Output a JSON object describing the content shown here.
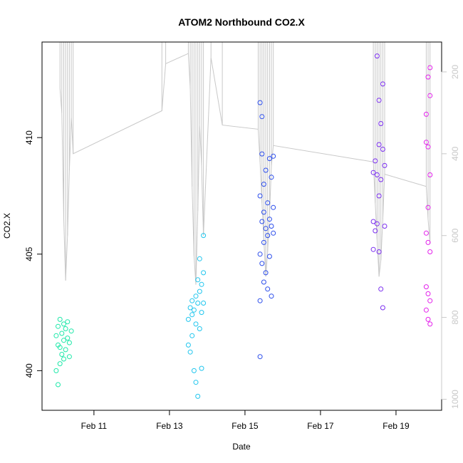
{
  "chart_data": {
    "type": "scatter",
    "title": "ATOM2 Northbound CO2.X",
    "xlabel": "Date",
    "ylabel": "CO2.X",
    "x_unit": "days",
    "xlim": [
      "2014-02-09T15:00",
      "2014-02-20T05:00"
    ],
    "ylim": [
      398.3,
      414.1
    ],
    "x_ticks": [
      {
        "date": "2014-02-11",
        "label": "Feb 11"
      },
      {
        "date": "2014-02-13",
        "label": "Feb 13"
      },
      {
        "date": "2014-02-15",
        "label": "Feb 15"
      },
      {
        "date": "2014-02-17",
        "label": "Feb 17"
      },
      {
        "date": "2014-02-19",
        "label": "Feb 19"
      }
    ],
    "y_ticks": [
      400,
      405,
      410
    ],
    "y2_ticks": [
      200,
      400,
      600,
      800,
      1000
    ],
    "y2_range": [
      127,
      1027
    ],
    "y2_reversed": true,
    "grid": false,
    "secondary_series": {
      "color": "#c8c8c8",
      "points": [
        [
          "2014-02-10T02:24",
          240
        ],
        [
          "2014-02-10T03:36",
          300
        ],
        [
          "2014-02-10T04:48",
          560
        ],
        [
          "2014-02-10T06:00",
          710
        ],
        [
          "2014-02-10T07:12",
          600
        ],
        [
          "2014-02-10T08:24",
          440
        ],
        [
          "2014-02-10T09:36",
          310
        ],
        [
          "2014-02-10T10:48",
          400
        ],
        [
          "2014-02-12T19:12",
          295
        ],
        [
          "2014-02-12T21:36",
          180
        ],
        [
          "2014-02-13T12:00",
          155
        ],
        [
          "2014-02-13T13:12",
          240
        ],
        [
          "2014-02-13T14:24",
          480
        ],
        [
          "2014-02-13T15:36",
          650
        ],
        [
          "2014-02-13T16:48",
          720
        ],
        [
          "2014-02-13T18:00",
          540
        ],
        [
          "2014-02-13T19:12",
          330
        ],
        [
          "2014-02-13T20:24",
          430
        ],
        [
          "2014-02-13T21:36",
          600
        ],
        [
          "2014-02-14T02:24",
          165
        ],
        [
          "2014-02-14T09:36",
          330
        ],
        [
          "2014-02-15T08:24",
          340
        ],
        [
          "2014-02-15T09:36",
          420
        ],
        [
          "2014-02-15T10:48",
          520
        ],
        [
          "2014-02-15T12:00",
          610
        ],
        [
          "2014-02-15T13:12",
          700
        ],
        [
          "2014-02-15T14:24",
          640
        ],
        [
          "2014-02-15T15:36",
          550
        ],
        [
          "2014-02-15T16:48",
          430
        ],
        [
          "2014-02-15T18:00",
          380
        ],
        [
          "2014-02-18T09:36",
          420
        ],
        [
          "2014-02-18T10:48",
          520
        ],
        [
          "2014-02-18T12:00",
          610
        ],
        [
          "2014-02-18T13:12",
          700
        ],
        [
          "2014-02-18T14:24",
          660
        ],
        [
          "2014-02-18T15:36",
          560
        ],
        [
          "2014-02-18T16:48",
          450
        ],
        [
          "2014-02-19T19:12",
          480
        ],
        [
          "2014-02-19T20:24",
          560
        ],
        [
          "2014-02-19T21:36",
          620
        ]
      ]
    },
    "series": [
      {
        "color": "#1EE8A9",
        "points": [
          [
            "2014-02-10T00:00",
            401.5
          ],
          [
            "2014-02-10T00:00",
            400.0
          ],
          [
            "2014-02-10T01:12",
            401.9
          ],
          [
            "2014-02-10T01:12",
            401.1
          ],
          [
            "2014-02-10T01:12",
            399.4
          ],
          [
            "2014-02-10T02:24",
            402.2
          ],
          [
            "2014-02-10T02:24",
            401.0
          ],
          [
            "2014-02-10T02:24",
            400.3
          ],
          [
            "2014-02-10T03:36",
            401.6
          ],
          [
            "2014-02-10T03:36",
            400.7
          ],
          [
            "2014-02-10T04:48",
            402.0
          ],
          [
            "2014-02-10T04:48",
            401.3
          ],
          [
            "2014-02-10T04:48",
            400.5
          ],
          [
            "2014-02-10T06:00",
            401.8
          ],
          [
            "2014-02-10T06:00",
            400.9
          ],
          [
            "2014-02-10T07:12",
            402.1
          ],
          [
            "2014-02-10T07:12",
            401.4
          ],
          [
            "2014-02-10T08:24",
            401.2
          ],
          [
            "2014-02-10T08:24",
            400.6
          ],
          [
            "2014-02-10T09:36",
            401.7
          ]
        ]
      },
      {
        "color": "#20C6EE",
        "points": [
          [
            "2014-02-13T12:00",
            402.2
          ],
          [
            "2014-02-13T12:00",
            401.1
          ],
          [
            "2014-02-13T13:12",
            402.7
          ],
          [
            "2014-02-13T13:12",
            400.8
          ],
          [
            "2014-02-13T14:24",
            403.0
          ],
          [
            "2014-02-13T14:24",
            402.4
          ],
          [
            "2014-02-13T14:24",
            401.5
          ],
          [
            "2014-02-13T15:36",
            402.6
          ],
          [
            "2014-02-13T15:36",
            400.0
          ],
          [
            "2014-02-13T16:48",
            403.2
          ],
          [
            "2014-02-13T16:48",
            402.0
          ],
          [
            "2014-02-13T16:48",
            399.5
          ],
          [
            "2014-02-13T18:00",
            403.9
          ],
          [
            "2014-02-13T18:00",
            402.9
          ],
          [
            "2014-02-13T18:00",
            398.9
          ],
          [
            "2014-02-13T19:12",
            404.8
          ],
          [
            "2014-02-13T19:12",
            403.4
          ],
          [
            "2014-02-13T19:12",
            401.8
          ],
          [
            "2014-02-13T20:24",
            403.7
          ],
          [
            "2014-02-13T20:24",
            402.5
          ],
          [
            "2014-02-13T20:24",
            400.1
          ],
          [
            "2014-02-13T21:36",
            405.8
          ],
          [
            "2014-02-13T21:36",
            404.2
          ],
          [
            "2014-02-13T21:36",
            402.9
          ]
        ]
      },
      {
        "color": "#2B4DEB",
        "points": [
          [
            "2014-02-15T09:36",
            411.5
          ],
          [
            "2014-02-15T09:36",
            407.5
          ],
          [
            "2014-02-15T09:36",
            405.0
          ],
          [
            "2014-02-15T09:36",
            403.0
          ],
          [
            "2014-02-15T09:36",
            400.6
          ],
          [
            "2014-02-15T10:48",
            410.9
          ],
          [
            "2014-02-15T10:48",
            409.3
          ],
          [
            "2014-02-15T10:48",
            406.4
          ],
          [
            "2014-02-15T10:48",
            404.6
          ],
          [
            "2014-02-15T12:00",
            408.0
          ],
          [
            "2014-02-15T12:00",
            406.8
          ],
          [
            "2014-02-15T12:00",
            405.5
          ],
          [
            "2014-02-15T12:00",
            403.8
          ],
          [
            "2014-02-15T13:12",
            408.6
          ],
          [
            "2014-02-15T13:12",
            406.1
          ],
          [
            "2014-02-15T13:12",
            404.2
          ],
          [
            "2014-02-15T14:24",
            407.2
          ],
          [
            "2014-02-15T14:24",
            405.8
          ],
          [
            "2014-02-15T14:24",
            403.5
          ],
          [
            "2014-02-15T15:36",
            409.1
          ],
          [
            "2014-02-15T15:36",
            406.5
          ],
          [
            "2014-02-15T15:36",
            404.9
          ],
          [
            "2014-02-15T16:48",
            408.3
          ],
          [
            "2014-02-15T16:48",
            406.2
          ],
          [
            "2014-02-15T16:48",
            403.2
          ],
          [
            "2014-02-15T18:00",
            409.2
          ],
          [
            "2014-02-15T18:00",
            407.0
          ],
          [
            "2014-02-15T18:00",
            405.9
          ]
        ]
      },
      {
        "color": "#7A2DEF",
        "points": [
          [
            "2014-02-18T09:36",
            408.5
          ],
          [
            "2014-02-18T09:36",
            406.4
          ],
          [
            "2014-02-18T09:36",
            405.2
          ],
          [
            "2014-02-18T10:48",
            409.0
          ],
          [
            "2014-02-18T10:48",
            406.0
          ],
          [
            "2014-02-18T12:00",
            413.5
          ],
          [
            "2014-02-18T12:00",
            408.4
          ],
          [
            "2014-02-18T12:00",
            406.3
          ],
          [
            "2014-02-18T13:12",
            411.6
          ],
          [
            "2014-02-18T13:12",
            409.7
          ],
          [
            "2014-02-18T13:12",
            407.5
          ],
          [
            "2014-02-18T13:12",
            405.1
          ],
          [
            "2014-02-18T14:24",
            410.6
          ],
          [
            "2014-02-18T14:24",
            408.2
          ],
          [
            "2014-02-18T14:24",
            403.5
          ],
          [
            "2014-02-18T15:36",
            412.3
          ],
          [
            "2014-02-18T15:36",
            409.5
          ],
          [
            "2014-02-18T15:36",
            402.7
          ],
          [
            "2014-02-18T16:48",
            408.8
          ],
          [
            "2014-02-18T16:48",
            406.2
          ]
        ]
      },
      {
        "color": "#E321EB",
        "points": [
          [
            "2014-02-19T19:12",
            411.0
          ],
          [
            "2014-02-19T19:12",
            409.8
          ],
          [
            "2014-02-19T19:12",
            405.9
          ],
          [
            "2014-02-19T19:12",
            403.6
          ],
          [
            "2014-02-19T19:12",
            402.6
          ],
          [
            "2014-02-19T20:24",
            412.6
          ],
          [
            "2014-02-19T20:24",
            409.6
          ],
          [
            "2014-02-19T20:24",
            407.0
          ],
          [
            "2014-02-19T20:24",
            405.5
          ],
          [
            "2014-02-19T20:24",
            403.3
          ],
          [
            "2014-02-19T20:24",
            402.2
          ],
          [
            "2014-02-19T21:36",
            413.0
          ],
          [
            "2014-02-19T21:36",
            411.8
          ],
          [
            "2014-02-19T21:36",
            408.4
          ],
          [
            "2014-02-19T21:36",
            405.1
          ],
          [
            "2014-02-19T21:36",
            403.0
          ],
          [
            "2014-02-19T21:36",
            402.0
          ]
        ]
      }
    ]
  }
}
